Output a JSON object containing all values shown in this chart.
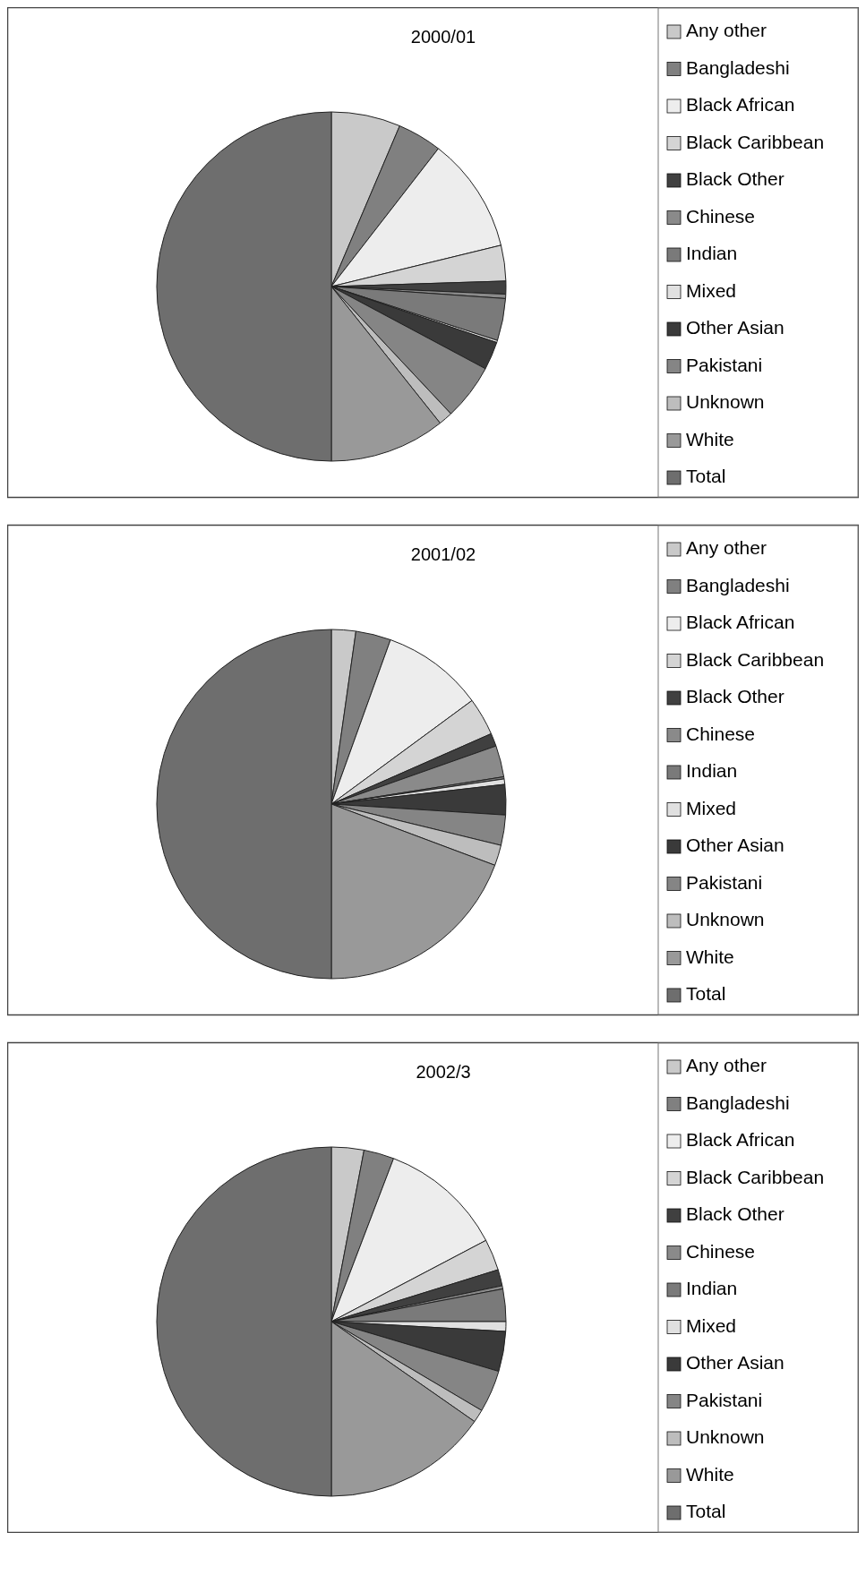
{
  "chart_data": [
    {
      "type": "pie",
      "title": "2000/01",
      "legend": "right",
      "categories": [
        "Any other",
        "Bangladeshi",
        "Black African",
        "Black Caribbean",
        "Black Other",
        "Chinese",
        "Indian",
        "Mixed",
        "Other Asian",
        "Pakistani",
        "Unknown",
        "White",
        "Total"
      ],
      "values": [
        6.4,
        4.1,
        10.7,
        3.3,
        1.2,
        0.4,
        3.9,
        0.2,
        2.6,
        5.2,
        1.3,
        10.7,
        50
      ],
      "colors": [
        "#c9c9c9",
        "#808080",
        "#ededed",
        "#d4d4d4",
        "#404040",
        "#8a8a8a",
        "#7a7a7a",
        "#e0e0e0",
        "#3a3a3a",
        "#858585",
        "#bdbdbd",
        "#999999",
        "#6e6e6e"
      ]
    },
    {
      "type": "pie",
      "title": "2001/02",
      "legend": "right",
      "categories": [
        "Any other",
        "Bangladeshi",
        "Black African",
        "Black Caribbean",
        "Black Other",
        "Chinese",
        "Indian",
        "Mixed",
        "Other Asian",
        "Pakistani",
        "Unknown",
        "White",
        "Total"
      ],
      "values": [
        2.25,
        3.25,
        9.4,
        3.5,
        1.2,
        2.9,
        0.2,
        0.5,
        2.8,
        2.8,
        1.9,
        19.3,
        50
      ],
      "colors": [
        "#c9c9c9",
        "#808080",
        "#ededed",
        "#d4d4d4",
        "#404040",
        "#8a8a8a",
        "#7a7a7a",
        "#e0e0e0",
        "#3a3a3a",
        "#858585",
        "#bdbdbd",
        "#999999",
        "#6e6e6e"
      ]
    },
    {
      "type": "pie",
      "title": "2002/3",
      "legend": "right",
      "categories": [
        "Any other",
        "Bangladeshi",
        "Black African",
        "Black Caribbean",
        "Black Other",
        "Chinese",
        "Indian",
        "Mixed",
        "Other Asian",
        "Pakistani",
        "Unknown",
        "White",
        "Total"
      ],
      "values": [
        3.0,
        2.8,
        11.5,
        2.9,
        1.5,
        0.3,
        3.0,
        0.9,
        3.7,
        3.9,
        1.2,
        15.3,
        50
      ],
      "colors": [
        "#c9c9c9",
        "#808080",
        "#ededed",
        "#d4d4d4",
        "#404040",
        "#8a8a8a",
        "#7a7a7a",
        "#e0e0e0",
        "#3a3a3a",
        "#858585",
        "#bdbdbd",
        "#999999",
        "#6e6e6e"
      ]
    }
  ]
}
